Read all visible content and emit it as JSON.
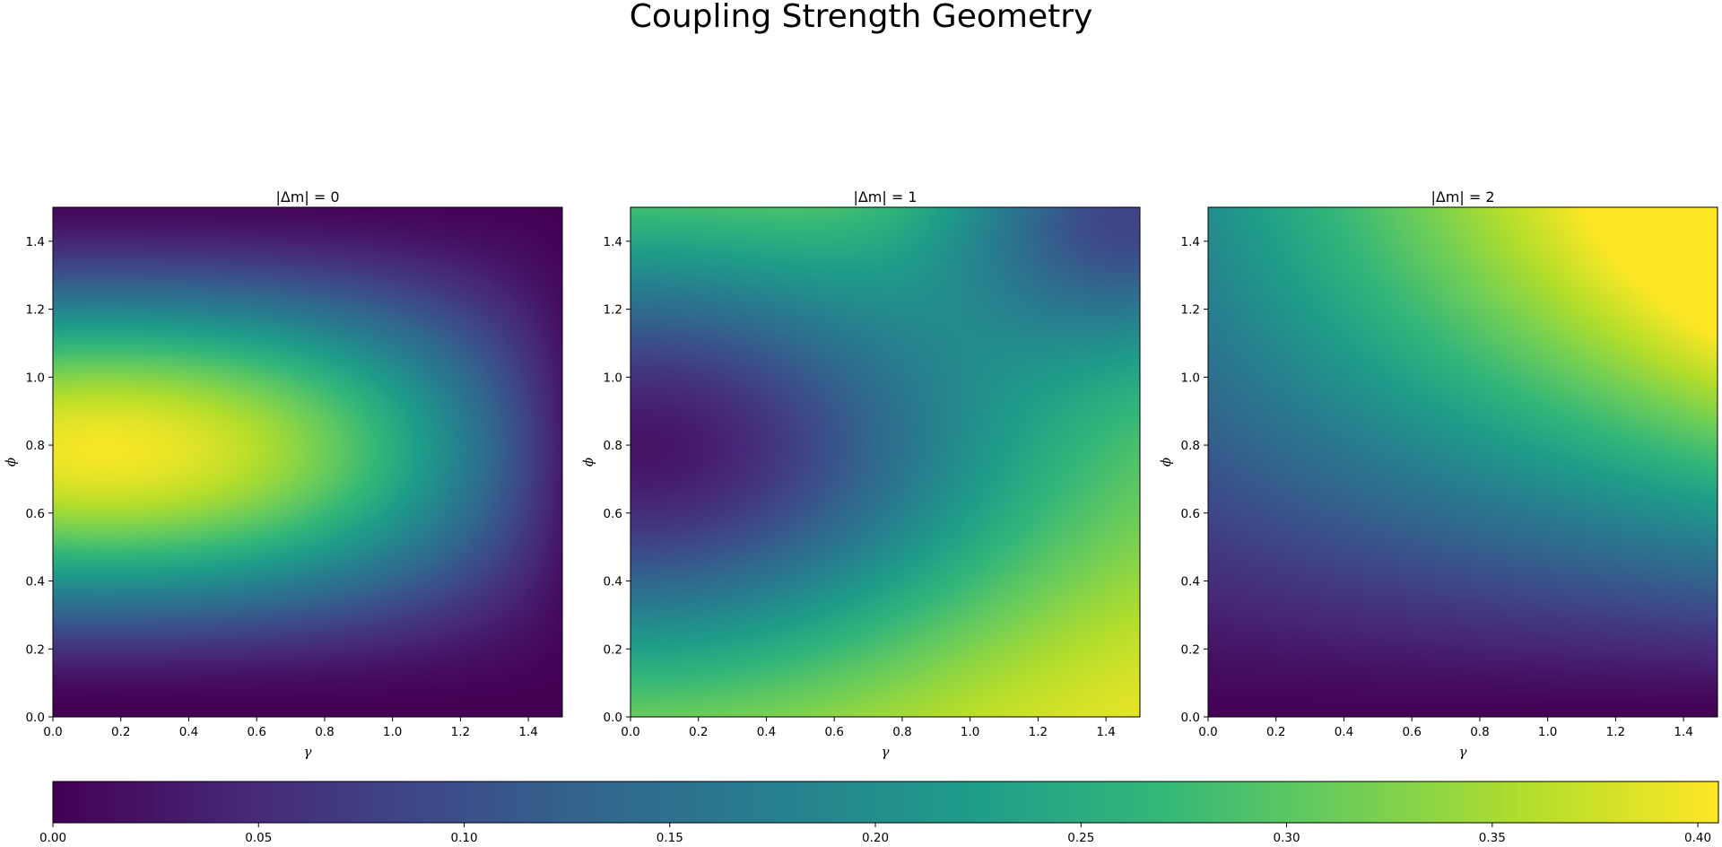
{
  "chart_data": {
    "type": "heatmap",
    "title": "Coupling Strength Geometry",
    "panels": [
      {
        "title": "|Δm| = 0",
        "xlabel": "γ",
        "ylabel": "ϕ",
        "xlim": [
          0,
          1.5
        ],
        "ylim": [
          0,
          1.5
        ],
        "model": "m0"
      },
      {
        "title": "|Δm| = 1",
        "xlabel": "γ",
        "ylabel": "ϕ",
        "xlim": [
          0,
          1.5
        ],
        "ylim": [
          0,
          1.5
        ],
        "model": "m1"
      },
      {
        "title": "|Δm| = 2",
        "xlabel": "γ",
        "ylabel": "ϕ",
        "xlim": [
          0,
          1.5
        ],
        "ylim": [
          0,
          1.5
        ],
        "model": "m2"
      }
    ],
    "x_ticks": [
      "0.0",
      "0.2",
      "0.4",
      "0.6",
      "0.8",
      "1.0",
      "1.2",
      "1.4"
    ],
    "y_ticks": [
      "0.0",
      "0.2",
      "0.4",
      "0.6",
      "0.8",
      "1.0",
      "1.2",
      "1.4"
    ],
    "colorbar": {
      "colormap": "viridis",
      "range": [
        0,
        0.405
      ],
      "ticks": [
        "0.00",
        "0.05",
        "0.10",
        "0.15",
        "0.20",
        "0.25",
        "0.30",
        "0.35",
        "0.40"
      ],
      "orientation": "horizontal"
    },
    "grid": false
  }
}
